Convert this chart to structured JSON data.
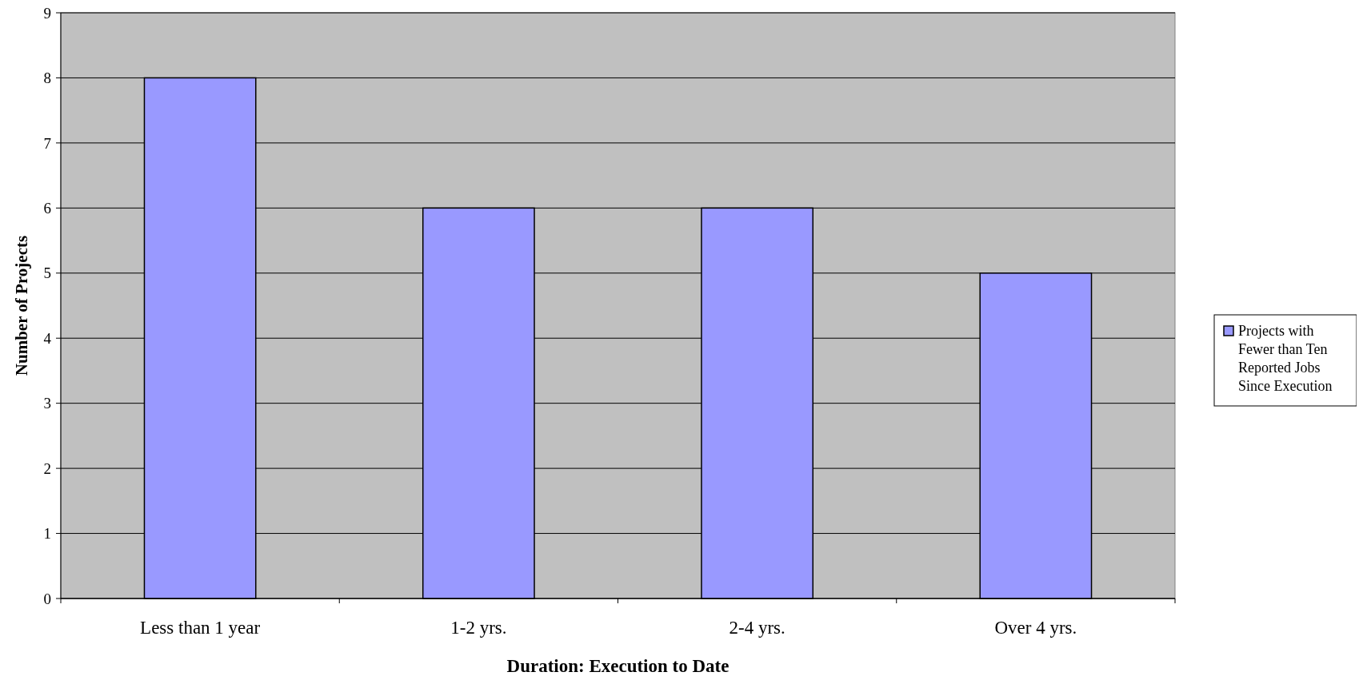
{
  "chart_data": {
    "type": "bar",
    "xlabel": "Duration: Execution to Date",
    "ylabel": "Number of Projects",
    "categories": [
      "Less than 1 year",
      "1-2 yrs.",
      "2-4 yrs.",
      "Over 4 yrs."
    ],
    "series": [
      {
        "name": "Projects with Fewer than Ten Reported Jobs Since Execution",
        "color": "#9999ff",
        "values": [
          8,
          6,
          6,
          5
        ]
      }
    ],
    "ylim": [
      0,
      9
    ],
    "yticks": [
      0,
      1,
      2,
      3,
      4,
      5,
      6,
      7,
      8,
      9
    ],
    "grid": "y",
    "legend": "right"
  }
}
